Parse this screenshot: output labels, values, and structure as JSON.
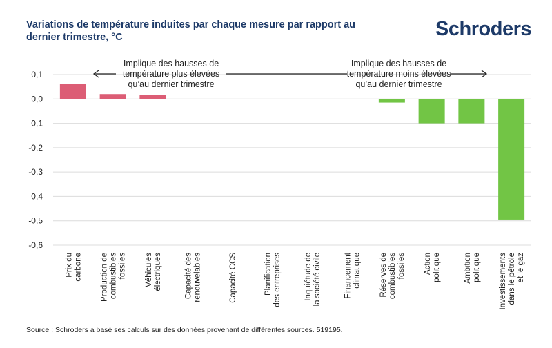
{
  "title": "Variations de température induites par chaque mesure par rapport au dernier trimestre, °C",
  "logo_text": "Schroders",
  "source": "Source : Schroders a basé ses calculs sur des données provenant de différentes sources. 519195.",
  "colors": {
    "positive": "#dc5d75",
    "negative": "#72c545",
    "title": "#1d3a68",
    "grid": "#dcdcdc",
    "text": "#222222"
  },
  "annotations": {
    "left": [
      "Implique des hausses de",
      "température plus élevées",
      "qu’au dernier trimestre"
    ],
    "right": [
      "Implique des hausses de",
      "température moins élevées",
      "qu’au dernier trimestre"
    ]
  },
  "chart_data": {
    "type": "bar",
    "categories": [
      [
        "Prix du",
        "carbone"
      ],
      [
        "Production de",
        "combustibles",
        "fossiles"
      ],
      [
        "Véhicules",
        "électriques"
      ],
      [
        "Capacité des",
        "renouvelables"
      ],
      [
        "Capacité CCS"
      ],
      [
        "Planification",
        "des entreprises"
      ],
      [
        "Inquiétude de",
        "la société civile"
      ],
      [
        "Financement",
        "climatique"
      ],
      [
        "Réserves de",
        "combustibles",
        "fossiles"
      ],
      [
        "Action",
        "politique"
      ],
      [
        "Ambition",
        "politique"
      ],
      [
        "Investissements",
        "dans le pétrole",
        "et le gaz"
      ]
    ],
    "values": [
      0.062,
      0.02,
      0.015,
      0,
      0,
      0,
      0,
      0,
      -0.015,
      -0.1,
      -0.1,
      -0.495
    ],
    "ylim": [
      -0.6,
      0.1
    ],
    "yticks": [
      0.1,
      0.0,
      -0.1,
      -0.2,
      -0.3,
      -0.4,
      -0.5,
      -0.6
    ],
    "ytick_labels": [
      "0,1",
      "0,0",
      "-0,1",
      "-0,2",
      "-0,3",
      "-0,4",
      "-0,5",
      "-0,6"
    ],
    "grid": true,
    "xlabel": "",
    "ylabel": ""
  }
}
